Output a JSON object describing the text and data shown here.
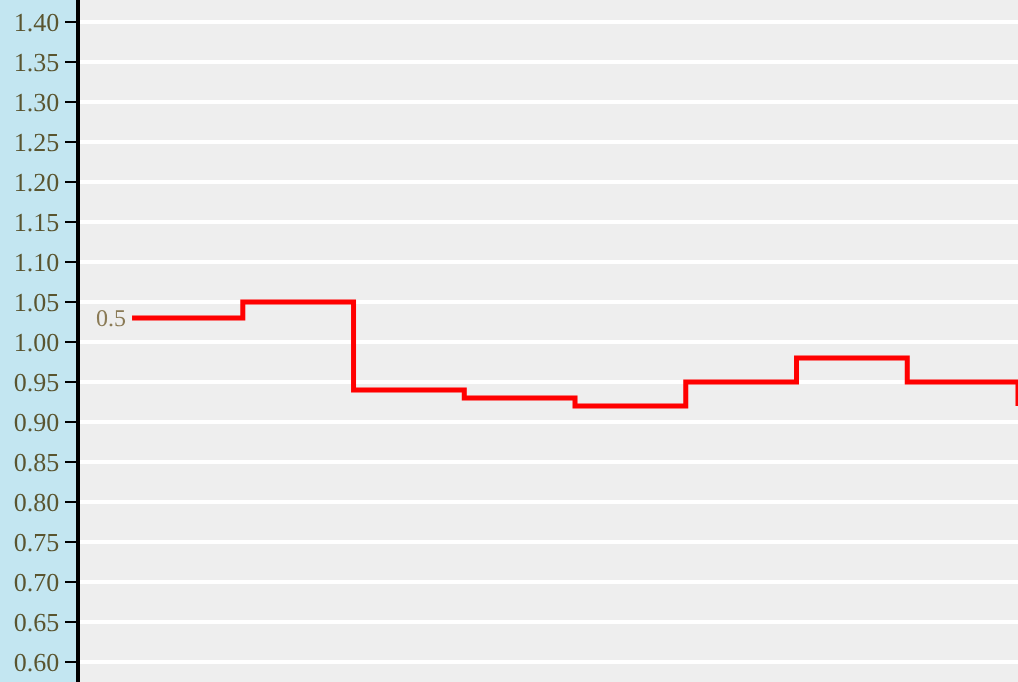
{
  "chart_data": {
    "type": "step",
    "categories": [
      null,
      null,
      null,
      null,
      null,
      null,
      null,
      null,
      null
    ],
    "series": [
      {
        "color": "#ff0000",
        "values": [
          1.03,
          1.05,
          0.94,
          0.93,
          0.92,
          0.95,
          0.98,
          0.95,
          0.92
        ]
      }
    ],
    "ylim": [
      0.575,
      1.4275
    ],
    "yticks": [
      {
        "value": 0.6,
        "label": "0.60"
      },
      {
        "value": 0.65,
        "label": "0.65"
      },
      {
        "value": 0.7,
        "label": "0.70"
      },
      {
        "value": 0.75,
        "label": "0.75"
      },
      {
        "value": 0.8,
        "label": "0.80"
      },
      {
        "value": 0.85,
        "label": "0.85"
      },
      {
        "value": 0.9,
        "label": "0.90"
      },
      {
        "value": 0.95,
        "label": "0.95"
      },
      {
        "value": 1.0,
        "label": "1.00"
      },
      {
        "value": 1.05,
        "label": "1.05"
      },
      {
        "value": 1.1,
        "label": "1.10"
      },
      {
        "value": 1.15,
        "label": "1.15"
      },
      {
        "value": 1.2,
        "label": "1.20"
      },
      {
        "value": 1.25,
        "label": "1.25"
      },
      {
        "value": 1.3,
        "label": "1.30"
      },
      {
        "value": 1.35,
        "label": "1.35"
      },
      {
        "value": 1.4,
        "label": "1.40"
      }
    ],
    "grid": "y",
    "tick_labels": "y",
    "annotations": [
      "0.5"
    ]
  }
}
